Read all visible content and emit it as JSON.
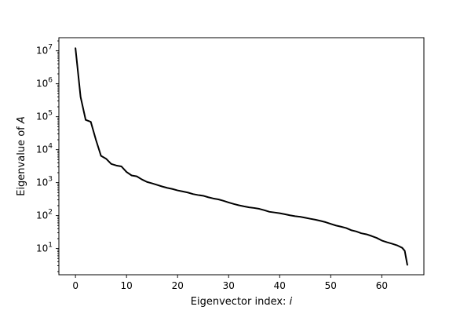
{
  "chart_data": {
    "type": "line",
    "xlabel": "Eigenvector index: ",
    "xlabel_var": "i",
    "ylabel": "Eigenvalue of ",
    "ylabel_var": "A",
    "y_scale": "log",
    "xlim": [
      -3.25,
      68.25
    ],
    "ylim": [
      1.6,
      25000000
    ],
    "x_ticks": [
      {
        "value": 0,
        "label": "0"
      },
      {
        "value": 10,
        "label": "10"
      },
      {
        "value": 20,
        "label": "20"
      },
      {
        "value": 30,
        "label": "30"
      },
      {
        "value": 40,
        "label": "40"
      },
      {
        "value": 50,
        "label": "50"
      },
      {
        "value": 60,
        "label": "60"
      }
    ],
    "y_ticks": [
      {
        "value": 10,
        "base": "10",
        "exp": "1"
      },
      {
        "value": 100,
        "base": "10",
        "exp": "2"
      },
      {
        "value": 1000,
        "base": "10",
        "exp": "3"
      },
      {
        "value": 10000,
        "base": "10",
        "exp": "4"
      },
      {
        "value": 100000,
        "base": "10",
        "exp": "5"
      },
      {
        "value": 1000000,
        "base": "10",
        "exp": "6"
      },
      {
        "value": 10000000,
        "base": "10",
        "exp": "7"
      }
    ],
    "grid": false,
    "legend": "none",
    "series": [
      {
        "color": "#000000",
        "points": [
          [
            0,
            12000000
          ],
          [
            1,
            400000
          ],
          [
            2,
            80000
          ],
          [
            3,
            70000
          ],
          [
            4,
            20000
          ],
          [
            5,
            6500
          ],
          [
            6,
            5300
          ],
          [
            7,
            3700
          ],
          [
            8,
            3300
          ],
          [
            9,
            3100
          ],
          [
            10,
            2100
          ],
          [
            11,
            1650
          ],
          [
            12,
            1550
          ],
          [
            13,
            1250
          ],
          [
            14,
            1050
          ],
          [
            15,
            950
          ],
          [
            16,
            850
          ],
          [
            17,
            760
          ],
          [
            18,
            690
          ],
          [
            19,
            640
          ],
          [
            20,
            580
          ],
          [
            21,
            540
          ],
          [
            22,
            500
          ],
          [
            23,
            450
          ],
          [
            24,
            420
          ],
          [
            25,
            400
          ],
          [
            26,
            360
          ],
          [
            27,
            330
          ],
          [
            28,
            310
          ],
          [
            29,
            280
          ],
          [
            30,
            250
          ],
          [
            31,
            225
          ],
          [
            32,
            205
          ],
          [
            33,
            190
          ],
          [
            34,
            178
          ],
          [
            35,
            170
          ],
          [
            36,
            160
          ],
          [
            37,
            145
          ],
          [
            38,
            130
          ],
          [
            39,
            124
          ],
          [
            40,
            118
          ],
          [
            41,
            110
          ],
          [
            42,
            102
          ],
          [
            43,
            96
          ],
          [
            44,
            92
          ],
          [
            45,
            86
          ],
          [
            46,
            80
          ],
          [
            47,
            75
          ],
          [
            48,
            69
          ],
          [
            49,
            63
          ],
          [
            50,
            56
          ],
          [
            51,
            50
          ],
          [
            52,
            46
          ],
          [
            53,
            42
          ],
          [
            54,
            36
          ],
          [
            55,
            33
          ],
          [
            56,
            29
          ],
          [
            57,
            27
          ],
          [
            58,
            24
          ],
          [
            59,
            21
          ],
          [
            60,
            17.5
          ],
          [
            61,
            15.5
          ],
          [
            62,
            14
          ],
          [
            63,
            12.5
          ],
          [
            64,
            10.5
          ],
          [
            64.5,
            8.5
          ],
          [
            65,
            3.2
          ]
        ]
      }
    ]
  }
}
